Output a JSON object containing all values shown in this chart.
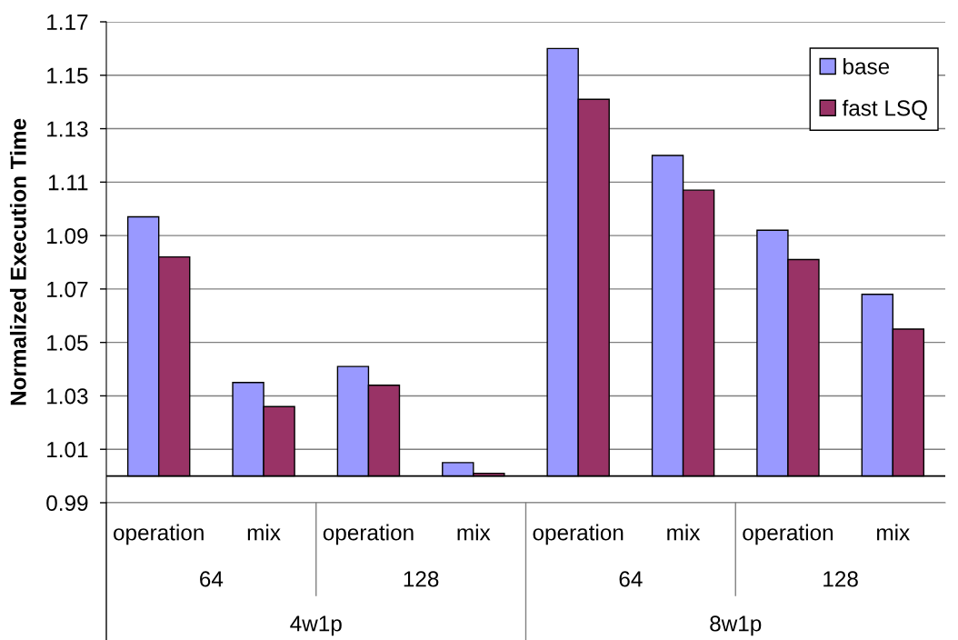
{
  "chart_data": {
    "type": "bar",
    "ylabel": "Normalized Execution Time",
    "categories": [
      "operation",
      "mix",
      "operation",
      "mix",
      "operation",
      "mix",
      "operation",
      "mix"
    ],
    "series": [
      {
        "name": "base",
        "color": "#9999ff",
        "base": [
          1,
          1,
          1,
          1,
          1,
          1,
          1,
          1
        ],
        "values": [
          0.097,
          0.035,
          0.041,
          0.005,
          0.16,
          0.12,
          0.092,
          0.068
        ]
      },
      {
        "name": "fast LSQ",
        "color": "#993366",
        "base": [
          1,
          1,
          1,
          1,
          1,
          1,
          1,
          1
        ],
        "values": [
          0.082,
          0.026,
          0.034,
          0.001,
          0.141,
          0.107,
          0.081,
          0.055
        ]
      }
    ],
    "ylim": [
      0.99,
      1.17
    ],
    "yticks": [
      0.99,
      1.01,
      1.03,
      1.05,
      1.07,
      1.09,
      1.11,
      1.13,
      1.15,
      1.17
    ],
    "grid": "y",
    "legend": "top right",
    "ref_lines": [
      {
        "axis": "y",
        "value": 1,
        "color": "#000000"
      }
    ],
    "annotations": [
      "64",
      "128",
      "64",
      "128",
      "4w1p",
      "8w1p"
    ]
  }
}
